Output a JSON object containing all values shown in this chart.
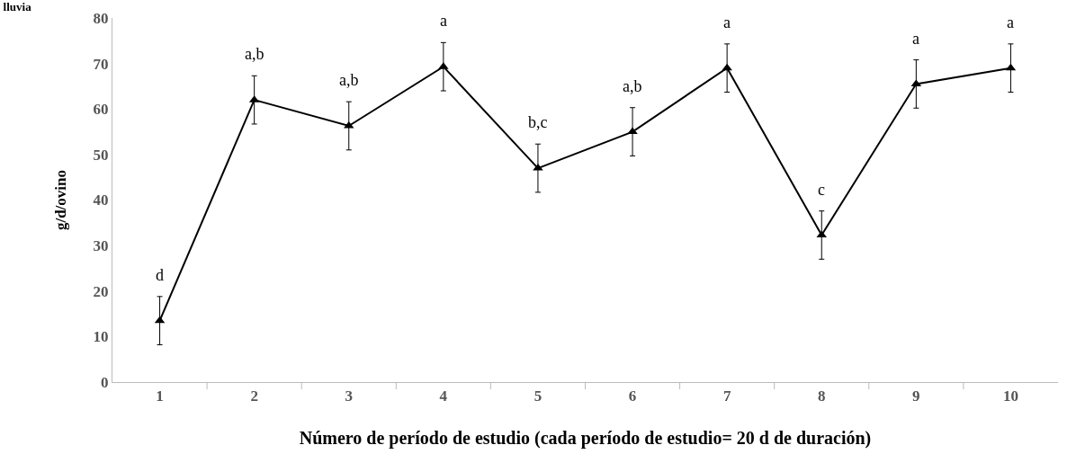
{
  "chart_data": {
    "type": "line",
    "title": "lluvia",
    "xlabel": "Número de período de estudio (cada período de estudio= 20 d de duración)",
    "ylabel": "g/d/ovino",
    "categories": [
      "1",
      "2",
      "3",
      "4",
      "5",
      "6",
      "7",
      "8",
      "9",
      "10"
    ],
    "series": [
      {
        "color": "#000000",
        "values": [
          13.5,
          62,
          56.3,
          69.3,
          47,
          55,
          69,
          32.3,
          65.5,
          69
        ],
        "errors": [
          5.3,
          5.3,
          5.3,
          5.3,
          5.3,
          5.3,
          5.3,
          5.3,
          5.3,
          5.3
        ]
      }
    ],
    "marker": "triangle",
    "line_style": "solid",
    "grid": false,
    "legend": false,
    "ylim": [
      0,
      80
    ],
    "yticks": [
      0,
      10,
      20,
      30,
      40,
      50,
      60,
      70,
      80
    ],
    "annotations": [
      "d",
      "a,b",
      "a,b",
      "a",
      "b,c",
      "a,b",
      "a",
      "c",
      "a",
      "a"
    ]
  }
}
